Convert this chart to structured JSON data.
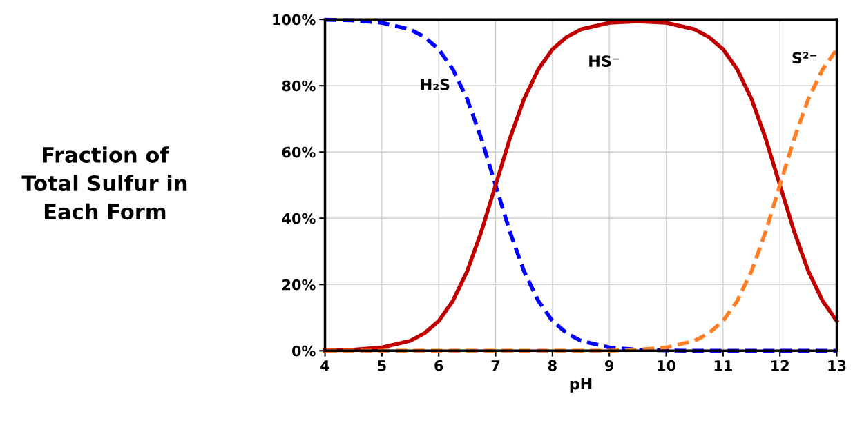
{
  "chart_data": {
    "type": "line",
    "xlabel": "pH",
    "ylabel": "Fraction of\nTotal Sulfur in\nEach Form",
    "x": [
      4,
      4.5,
      5,
      5.5,
      5.75,
      6,
      6.25,
      6.5,
      6.75,
      7,
      7.25,
      7.5,
      7.75,
      8,
      8.25,
      8.5,
      9,
      9.5,
      10,
      10.5,
      10.75,
      11,
      11.25,
      11.5,
      11.75,
      12,
      12.25,
      12.5,
      12.75,
      13
    ],
    "series": [
      {
        "name": "H₂S",
        "color": "#0000ff",
        "line_style": "dashed",
        "values": [
          99.9,
          99.7,
          99,
          97,
          94.7,
          91,
          84.9,
          76,
          64,
          50,
          36,
          24,
          15.1,
          9,
          5.3,
          3,
          1,
          0.3,
          0.1,
          0,
          0,
          0,
          0,
          0,
          0,
          0,
          0,
          0,
          0,
          0
        ]
      },
      {
        "name": "HS⁻",
        "color": "#c00000",
        "line_style": "solid",
        "values": [
          0.1,
          0.3,
          1,
          3,
          5.3,
          9,
          15.1,
          24,
          36,
          50,
          64,
          76,
          84.9,
          91,
          94.7,
          97,
          99,
          99.4,
          99,
          97,
          94.7,
          91,
          84.9,
          76,
          64,
          50,
          36,
          24,
          15.1,
          9
        ]
      },
      {
        "name": "S²⁻",
        "color": "#ff7f27",
        "line_style": "dashed",
        "values": [
          0,
          0,
          0,
          0,
          0,
          0,
          0,
          0,
          0,
          0,
          0,
          0,
          0,
          0,
          0,
          0,
          0,
          0.3,
          1,
          3,
          5.3,
          9,
          15.1,
          24,
          36,
          50,
          64,
          76,
          84.9,
          91
        ]
      }
    ],
    "xlim": [
      4,
      13
    ],
    "xticks": [
      4,
      5,
      6,
      7,
      8,
      9,
      10,
      11,
      12,
      13
    ],
    "ylim": [
      0,
      100
    ],
    "yticks": [
      {
        "value": 0,
        "label": "0%"
      },
      {
        "value": 20,
        "label": "20%"
      },
      {
        "value": 40,
        "label": "40%"
      },
      {
        "value": 60,
        "label": "60%"
      },
      {
        "value": 80,
        "label": "80%"
      },
      {
        "value": 100,
        "label": "100%"
      }
    ],
    "grid": true,
    "legend": false
  }
}
